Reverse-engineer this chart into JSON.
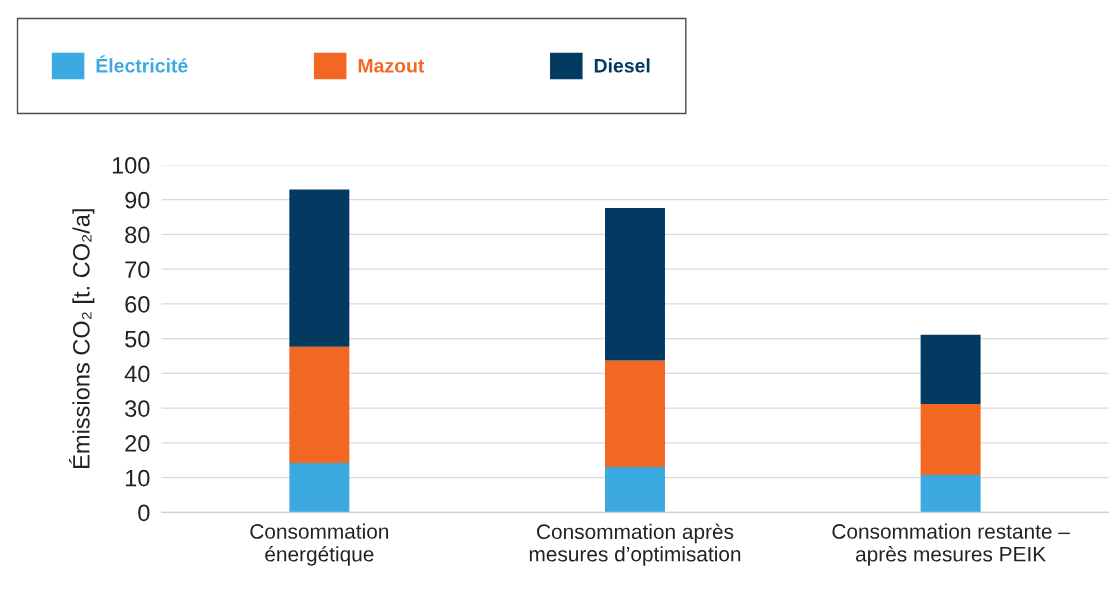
{
  "chart_data": {
    "type": "bar",
    "stacked": true,
    "ylabel": "Émissions CO₂ [t. CO₂/a]",
    "categories": [
      "Consommation\nénergétique",
      "Consommation après\nmesures d’optimisation",
      "Consommation restante –\naprès mesures PEIK"
    ],
    "series": [
      {
        "name": "Électricité",
        "color": "#3caae1",
        "values": [
          14.2,
          13.1,
          10.8
        ]
      },
      {
        "name": "Mazout",
        "color": "#f26722",
        "values": [
          33.5,
          30.6,
          20.4
        ]
      },
      {
        "name": "Diesel",
        "color": "#023a62",
        "values": [
          45.2,
          43.9,
          19.9
        ]
      }
    ],
    "ylim": [
      0,
      100
    ],
    "yticks": [
      0,
      10,
      20,
      30,
      40,
      50,
      60,
      70,
      80,
      90,
      100
    ],
    "grid": "y",
    "legend": "top left"
  }
}
